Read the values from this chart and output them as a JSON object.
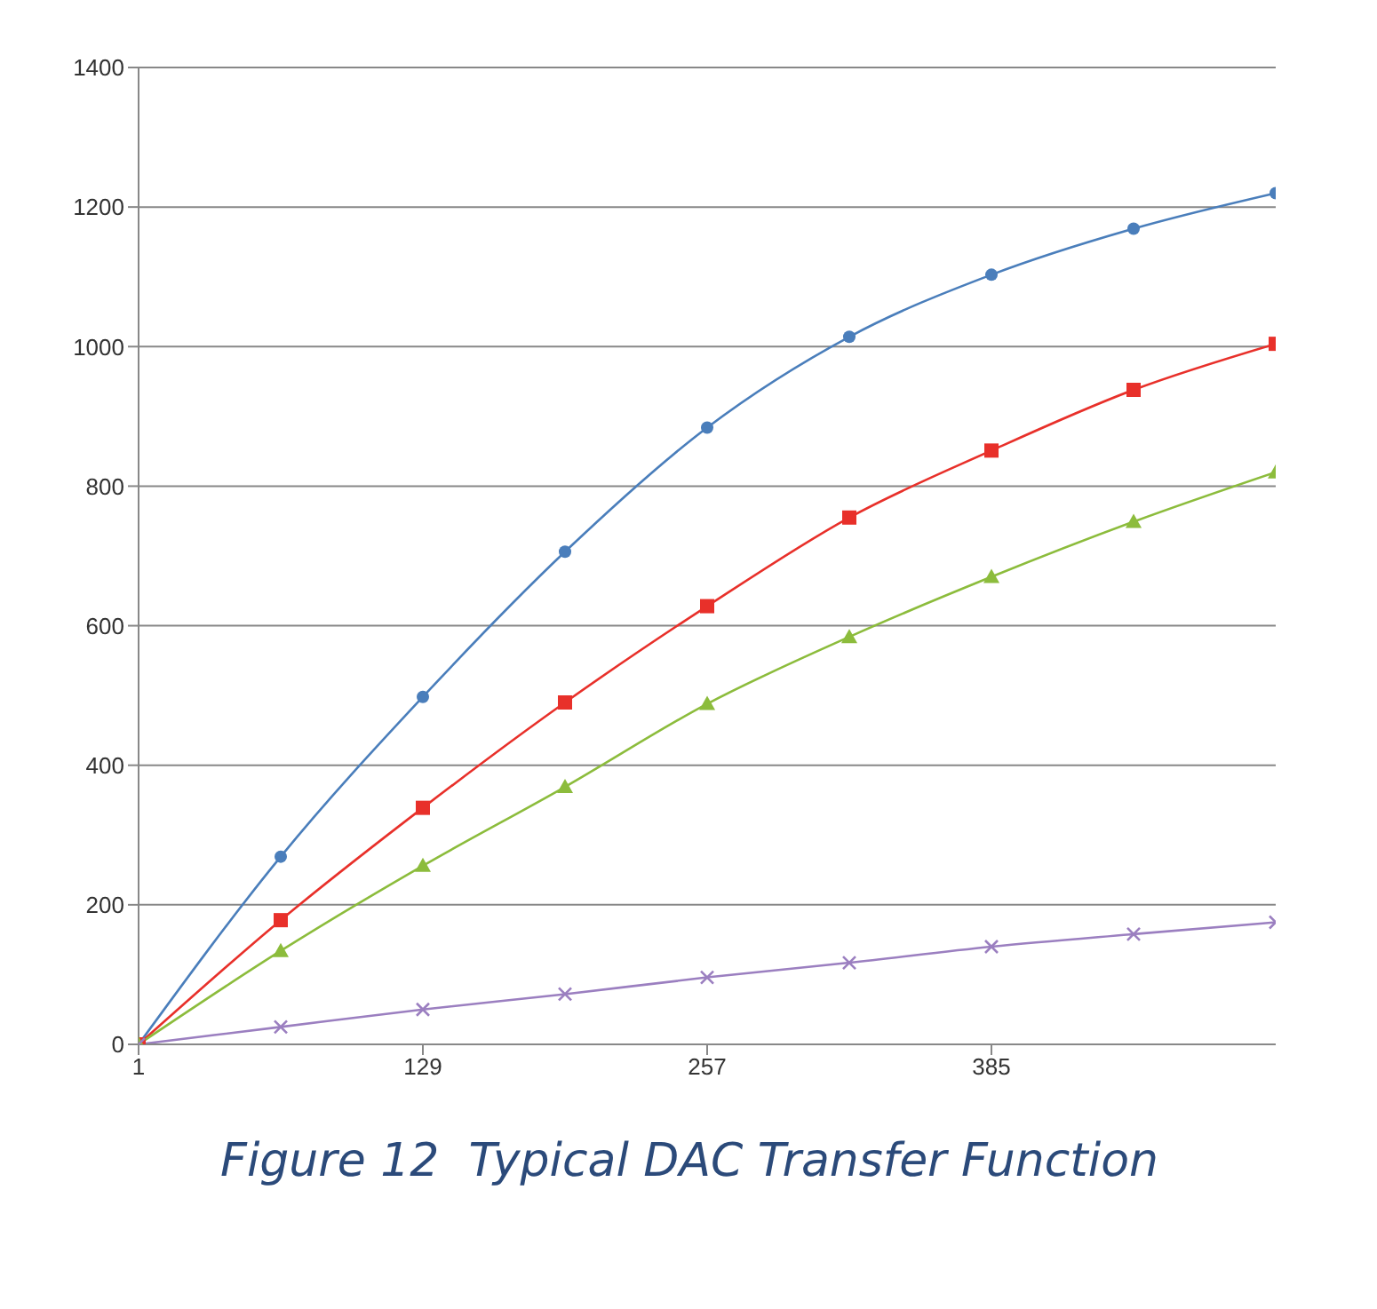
{
  "chart_data": {
    "type": "line",
    "title": "Figure 12  Typical DAC Transfer Function",
    "x": [
      1,
      65,
      129,
      193,
      257,
      321,
      385,
      449,
      513
    ],
    "series": [
      {
        "color": "#4a7ebb",
        "marker": "circle",
        "values": [
          0,
          269,
          498,
          706,
          884,
          1014,
          1103,
          1169,
          1220
        ]
      },
      {
        "color": "#e8302a",
        "marker": "square",
        "values": [
          0,
          178,
          339,
          490,
          628,
          755,
          851,
          938,
          1004
        ]
      },
      {
        "color": "#8cbc3c",
        "marker": "triangle",
        "values": [
          0,
          134,
          256,
          369,
          488,
          584,
          670,
          749,
          820
        ]
      },
      {
        "color": "#9b7fc0",
        "marker": "cross",
        "values": [
          0,
          25,
          50,
          72,
          96,
          117,
          140,
          158,
          175
        ]
      }
    ],
    "xlim": [
      1,
      513
    ],
    "xticks": [
      1,
      129,
      257,
      385
    ],
    "ylim": [
      0,
      1400
    ],
    "yticks": [
      0,
      200,
      400,
      600,
      800,
      1000,
      1200,
      1400
    ],
    "grid": "y",
    "legend": false,
    "line_style": "solid"
  }
}
